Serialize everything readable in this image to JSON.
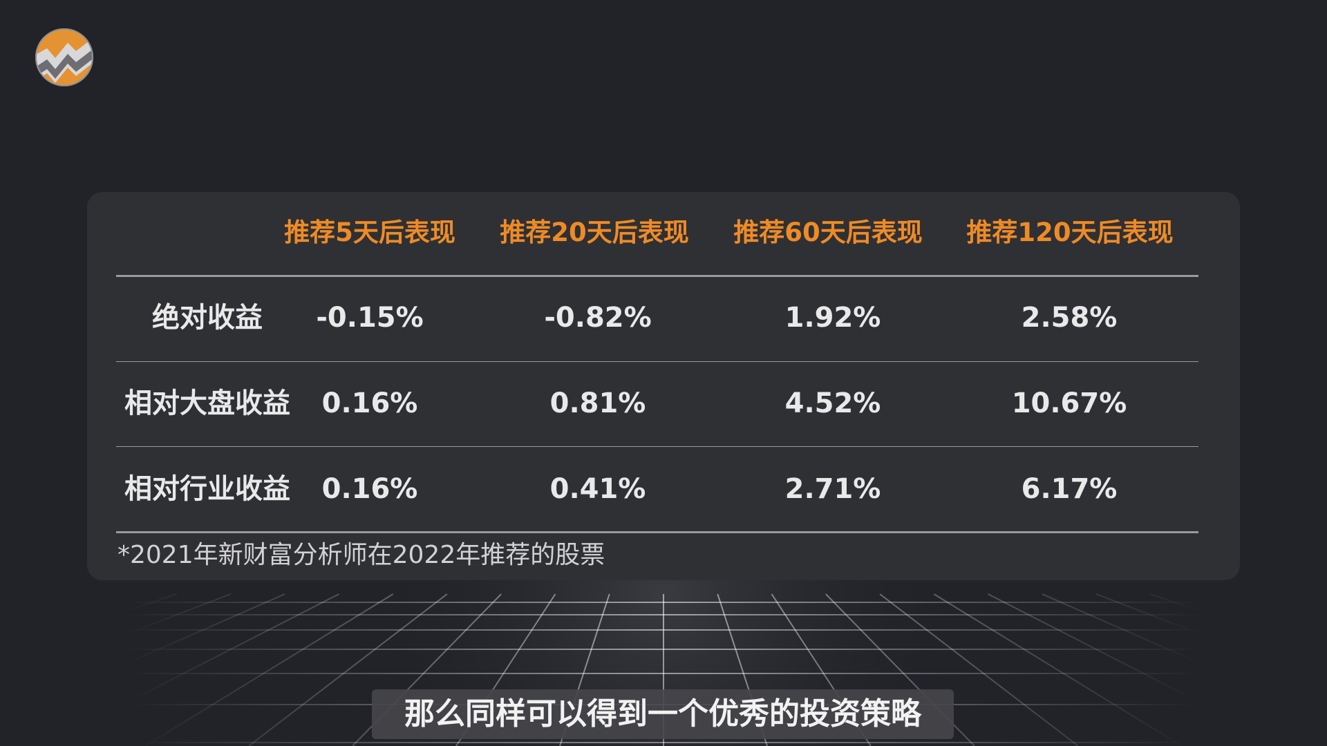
{
  "table": {
    "headers": [
      "推荐5天后表现",
      "推荐20天后表现",
      "推荐60天后表现",
      "推荐120天后表现"
    ],
    "rows": [
      {
        "label": "绝对收益",
        "values": [
          "-0.15%",
          "-0.82%",
          "1.92%",
          "2.58%"
        ]
      },
      {
        "label": "相对大盘收益",
        "values": [
          "0.16%",
          "0.81%",
          "4.52%",
          "10.67%"
        ]
      },
      {
        "label": "相对行业收益",
        "values": [
          "0.16%",
          "0.41%",
          "2.71%",
          "6.17%"
        ]
      }
    ],
    "footnote": "*2021年新财富分析师在2022年推荐的股票"
  },
  "subtitle": "那么同样可以得到一个优秀的投资策略",
  "colors": {
    "background": "#222328",
    "panel": "#2f3034",
    "header_accent": "#ee8b26",
    "text": "#e9e9ea",
    "subtitle_box": "#46464a"
  },
  "logo": {
    "icon": "chart-zigzag-logo-icon"
  }
}
